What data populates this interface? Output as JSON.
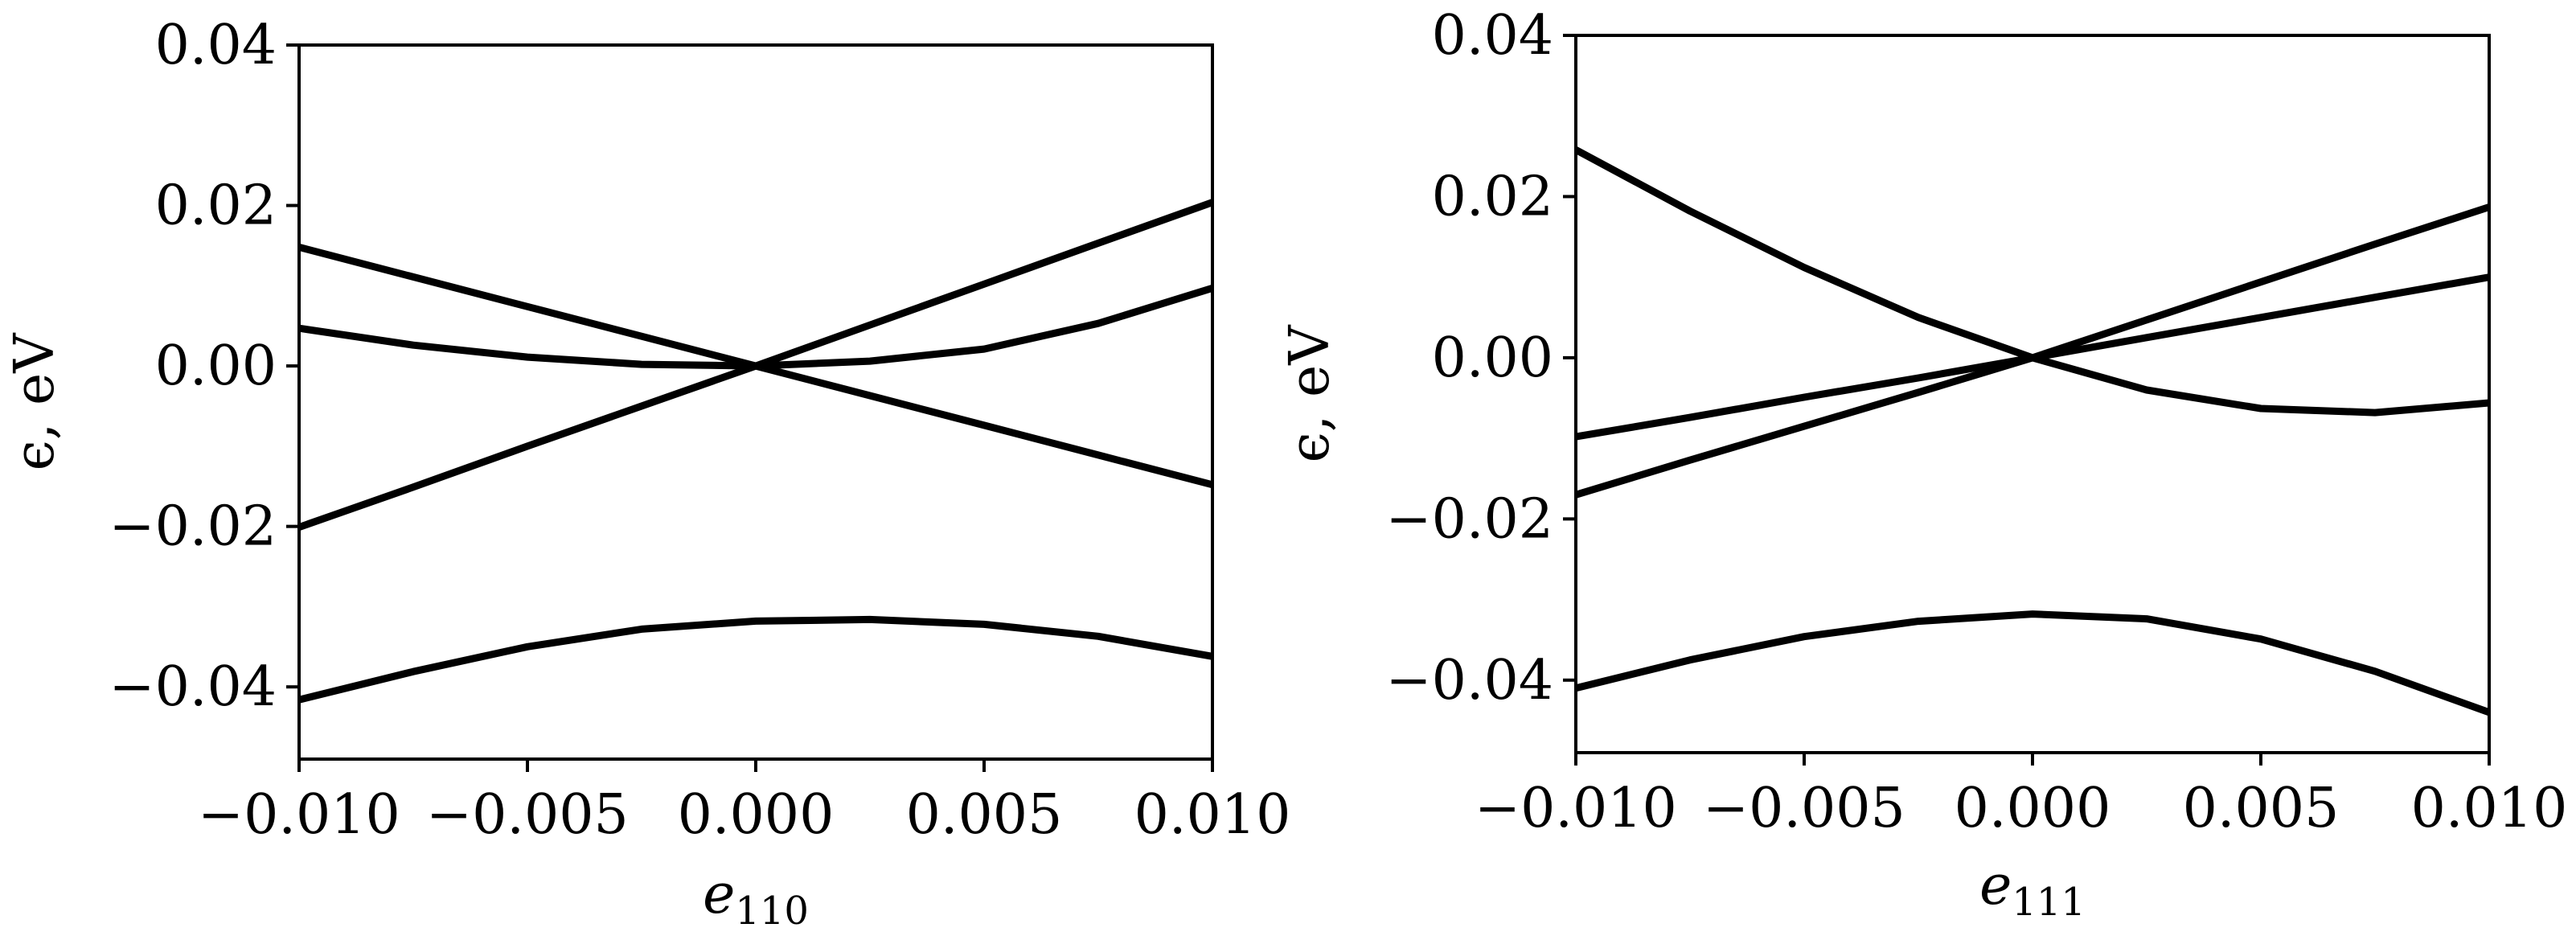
{
  "chart_data": [
    {
      "type": "line",
      "title": "",
      "xlabel": "e",
      "xlabel_sub": "110",
      "ylabel": "ϵ, eV",
      "xlim": [
        -0.01,
        0.01
      ],
      "ylim": [
        -0.049,
        0.04
      ],
      "grid": false,
      "legend": "none",
      "line_color": "#000000",
      "x_ticks": [
        -0.01,
        -0.005,
        0.0,
        0.005,
        0.01
      ],
      "x_tick_labels": [
        "−0.010",
        "−0.005",
        "0.000",
        "0.005",
        "0.010"
      ],
      "y_ticks": [
        -0.04,
        -0.02,
        0.0,
        0.02,
        0.04
      ],
      "y_tick_labels": [
        "−0.04",
        "−0.02",
        "0.00",
        "0.02",
        "0.04"
      ],
      "x": [
        -0.01,
        -0.0075,
        -0.005,
        -0.0025,
        0.0,
        0.0025,
        0.005,
        0.0075,
        0.01
      ],
      "series": [
        {
          "values": [
            0.0148,
            0.0111,
            0.0074,
            0.0037,
            0.0,
            -0.0037,
            -0.0074,
            -0.0111,
            -0.0148
          ]
        },
        {
          "values": [
            0.0047,
            0.0026,
            0.0011,
            0.0002,
            0.0,
            0.0006,
            0.0021,
            0.0053,
            0.0097
          ]
        },
        {
          "values": [
            -0.0201,
            -0.0151,
            -0.01,
            -0.005,
            0.0,
            0.0051,
            0.0102,
            0.0153,
            0.0204
          ]
        },
        {
          "values": [
            -0.0416,
            -0.0381,
            -0.035,
            -0.0328,
            -0.0318,
            -0.0316,
            -0.0322,
            -0.0337,
            -0.0362
          ]
        }
      ]
    },
    {
      "type": "line",
      "title": "",
      "xlabel": "e",
      "xlabel_sub": "111",
      "ylabel": "ϵ, eV",
      "xlim": [
        -0.01,
        0.01
      ],
      "ylim": [
        -0.049,
        0.04
      ],
      "grid": false,
      "legend": "none",
      "line_color": "#000000",
      "x_ticks": [
        -0.01,
        -0.005,
        0.0,
        0.005,
        0.01
      ],
      "x_tick_labels": [
        "−0.010",
        "−0.005",
        "0.000",
        "0.005",
        "0.010"
      ],
      "y_ticks": [
        -0.04,
        -0.02,
        0.0,
        0.02,
        0.04
      ],
      "y_tick_labels": [
        "−0.04",
        "−0.02",
        "0.00",
        "0.02",
        "0.04"
      ],
      "x": [
        -0.01,
        -0.0075,
        -0.005,
        -0.0025,
        0.0,
        0.0025,
        0.005,
        0.0075,
        0.01
      ],
      "series": [
        {
          "values": [
            0.0258,
            0.0182,
            0.0112,
            0.005,
            0.0,
            -0.004,
            -0.0063,
            -0.0068,
            -0.0056
          ]
        },
        {
          "values": [
            -0.0098,
            -0.0074,
            -0.0049,
            -0.0025,
            0.0,
            0.0025,
            0.005,
            0.0075,
            0.01
          ]
        },
        {
          "values": [
            -0.017,
            -0.0127,
            -0.0085,
            -0.0043,
            0.0,
            0.0047,
            0.0094,
            0.0141,
            0.0187
          ]
        },
        {
          "values": [
            -0.041,
            -0.0375,
            -0.0346,
            -0.0327,
            -0.0318,
            -0.0324,
            -0.0349,
            -0.0389,
            -0.044
          ]
        }
      ]
    }
  ]
}
